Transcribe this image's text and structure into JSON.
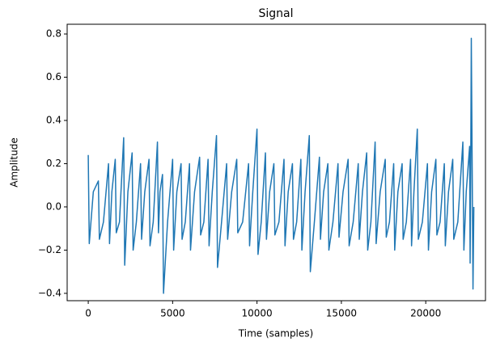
{
  "chart_data": {
    "type": "line",
    "title": "Signal",
    "x_label": "Time (samples)",
    "y_label": "Amplitude",
    "color": "#1f77b4",
    "x": [
      0,
      60,
      300,
      600,
      660,
      900,
      1200,
      1260,
      1400,
      1600,
      1660,
      1850,
      2100,
      2160,
      2350,
      2600,
      2660,
      2850,
      3100,
      3160,
      3350,
      3600,
      3660,
      3850,
      4100,
      4160,
      4250,
      4400,
      4460,
      4700,
      5000,
      5060,
      5250,
      5500,
      5560,
      5750,
      6000,
      6060,
      6300,
      6600,
      6660,
      6850,
      7100,
      7160,
      7350,
      7600,
      7660,
      7900,
      8200,
      8260,
      8500,
      8800,
      8860,
      9150,
      9500,
      9560,
      9750,
      10000,
      10060,
      10250,
      10500,
      10560,
      10750,
      11000,
      11060,
      11300,
      11600,
      11660,
      11850,
      12100,
      12160,
      12350,
      12600,
      12660,
      12850,
      13100,
      13160,
      13400,
      13700,
      13760,
      13950,
      14200,
      14260,
      14500,
      14800,
      14860,
      15100,
      15400,
      15460,
      15700,
      16000,
      16060,
      16250,
      16500,
      16560,
      16750,
      17000,
      17060,
      17300,
      17600,
      17660,
      17850,
      18100,
      18160,
      18350,
      18600,
      18660,
      18850,
      19100,
      19160,
      19300,
      19500,
      19560,
      19800,
      20100,
      20160,
      20350,
      20600,
      20660,
      20850,
      21100,
      21160,
      21350,
      21600,
      21660,
      21900,
      22200,
      22260,
      22400,
      22600,
      22630,
      22660,
      22700,
      22800,
      22850
    ],
    "values": [
      0.24,
      -0.17,
      0.07,
      0.12,
      -0.15,
      -0.07,
      0.2,
      -0.17,
      0.07,
      0.22,
      -0.12,
      -0.07,
      0.32,
      -0.27,
      0.07,
      0.25,
      -0.2,
      -0.07,
      0.2,
      -0.15,
      0.07,
      0.22,
      -0.18,
      -0.07,
      0.3,
      -0.12,
      0.07,
      0.15,
      -0.4,
      -0.07,
      0.22,
      -0.2,
      0.07,
      0.2,
      -0.15,
      -0.07,
      0.2,
      -0.2,
      0.07,
      0.23,
      -0.13,
      -0.07,
      0.22,
      -0.18,
      0.07,
      0.33,
      -0.28,
      -0.07,
      0.2,
      -0.15,
      0.07,
      0.22,
      -0.12,
      -0.07,
      0.2,
      -0.18,
      0.07,
      0.36,
      -0.22,
      -0.07,
      0.25,
      -0.15,
      0.07,
      0.2,
      -0.13,
      -0.07,
      0.22,
      -0.18,
      0.07,
      0.2,
      -0.15,
      -0.07,
      0.22,
      -0.2,
      0.07,
      0.33,
      -0.3,
      -0.07,
      0.23,
      -0.15,
      0.07,
      0.2,
      -0.2,
      -0.07,
      0.2,
      -0.14,
      0.07,
      0.22,
      -0.18,
      -0.07,
      0.2,
      -0.15,
      0.07,
      0.25,
      -0.2,
      -0.07,
      0.3,
      -0.17,
      0.07,
      0.22,
      -0.14,
      -0.07,
      0.2,
      -0.2,
      0.07,
      0.2,
      -0.15,
      -0.07,
      0.22,
      -0.18,
      0.07,
      0.36,
      -0.15,
      -0.07,
      0.2,
      -0.2,
      0.07,
      0.22,
      -0.13,
      -0.07,
      0.2,
      -0.18,
      0.07,
      0.22,
      -0.15,
      -0.07,
      0.3,
      -0.2,
      0.07,
      0.28,
      -0.26,
      0.1,
      0.78,
      -0.38,
      0.0
    ],
    "xlim": [
      -1250,
      23540
    ],
    "xticks": [
      0,
      5000,
      10000,
      15000,
      20000
    ],
    "ylim": [
      -0.434,
      0.845
    ],
    "yticks": [
      {
        "value": -0.4,
        "label": "−0.4"
      },
      {
        "value": -0.2,
        "label": "−0.2"
      },
      {
        "value": 0,
        "label": "0.0"
      },
      {
        "value": 0.2,
        "label": "0.2"
      },
      {
        "value": 0.4,
        "label": "0.4"
      },
      {
        "value": 0.6,
        "label": "0.6"
      },
      {
        "value": 0.8,
        "label": "0.8"
      }
    ],
    "grid": false
  }
}
